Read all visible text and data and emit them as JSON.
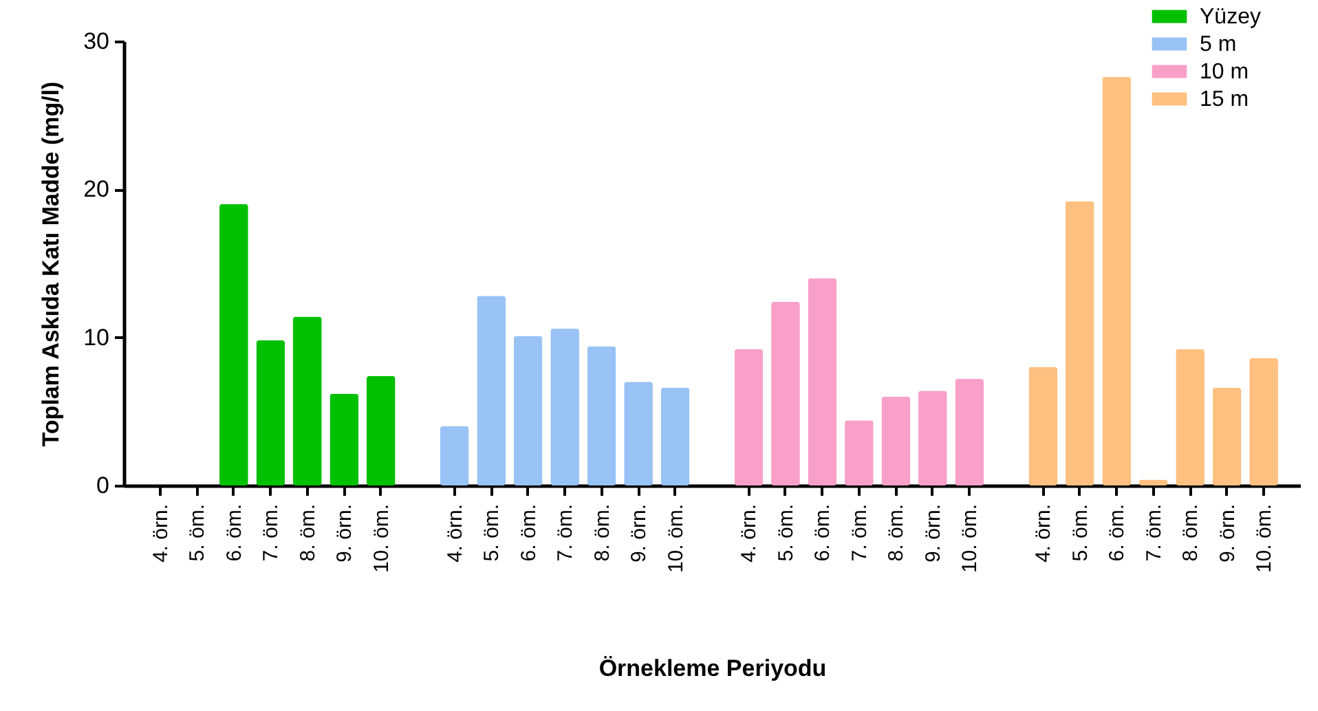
{
  "chart_data": {
    "type": "bar",
    "xlabel": "Örnekleme Periyodu",
    "ylabel": "Toplam Askıda Katı Madde (mg/l)",
    "categories": [
      "4. örn.",
      "5. öm.",
      "6. öm.",
      "7. öm.",
      "8. öm.",
      "9. örn.",
      "10. öm.",
      null,
      "4. örn.",
      "5. öm.",
      "6. öm.",
      "7. öm.",
      "8. öm.",
      "9. örn.",
      "10. öm.",
      null,
      "4. örn.",
      "5. öm.",
      "6. öm.",
      "7. öm.",
      "8. öm.",
      "9. örn.",
      "10. öm.",
      null,
      "4. örn.",
      "5. öm.",
      "6. öm.",
      "7. öm.",
      "8. öm.",
      "9. örn.",
      "10. öm."
    ],
    "series": [
      {
        "name": "Yüzey",
        "color": "#00c000",
        "values": [
          null,
          null,
          19.0,
          9.8,
          11.4,
          6.2,
          7.4,
          null,
          null,
          null,
          null,
          null,
          null,
          null,
          null,
          null,
          null,
          null,
          null,
          null,
          null,
          null,
          null,
          null,
          null,
          null,
          null,
          null,
          null,
          null,
          null
        ]
      },
      {
        "name": "5 m",
        "color": "#99c2f5",
        "values": [
          null,
          null,
          null,
          null,
          null,
          null,
          null,
          null,
          4.0,
          12.8,
          10.1,
          10.6,
          9.4,
          7.0,
          6.6,
          null,
          null,
          null,
          null,
          null,
          null,
          null,
          null,
          null,
          null,
          null,
          null,
          null,
          null,
          null,
          null
        ]
      },
      {
        "name": "10 m",
        "color": "#f9a0c8",
        "values": [
          null,
          null,
          null,
          null,
          null,
          null,
          null,
          null,
          null,
          null,
          null,
          null,
          null,
          null,
          null,
          null,
          9.2,
          12.4,
          14.0,
          4.4,
          6.0,
          6.4,
          7.2,
          null,
          null,
          null,
          null,
          null,
          null,
          null,
          null
        ]
      },
      {
        "name": "15 m",
        "color": "#ffc080",
        "values": [
          null,
          null,
          null,
          null,
          null,
          null,
          null,
          null,
          null,
          null,
          null,
          null,
          null,
          null,
          null,
          null,
          null,
          null,
          null,
          null,
          null,
          null,
          null,
          null,
          8.0,
          19.2,
          27.6,
          0.4,
          9.2,
          6.6,
          8.6
        ]
      }
    ],
    "ylim": [
      0,
      30
    ],
    "yticks": [
      0,
      10,
      20,
      30
    ],
    "legend": "top right",
    "grid": false
  }
}
